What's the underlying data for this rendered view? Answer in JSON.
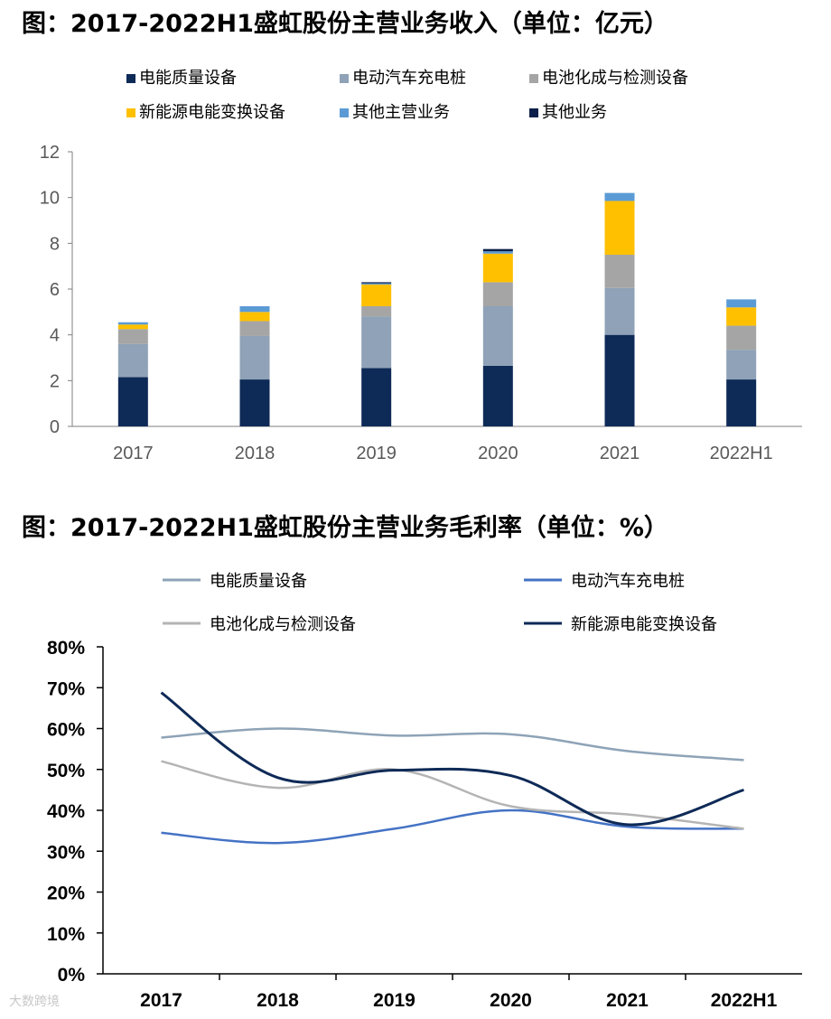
{
  "titles": {
    "chart1": "图：2017-2022H1盛虹股份主营业务收入（单位：亿元）",
    "chart2": "图：2017-2022H1盛虹股份主营业务毛利率（单位：%）"
  },
  "watermark": "大数跨境",
  "chart_data": [
    {
      "type": "bar",
      "stacked": true,
      "title": "图：2017-2022H1盛虹股份主营业务收入（单位：亿元）",
      "categories": [
        "2017",
        "2018",
        "2019",
        "2020",
        "2021",
        "2022H1"
      ],
      "ylim": [
        0,
        12
      ],
      "yticks": [
        0,
        2,
        4,
        6,
        8,
        10,
        12
      ],
      "ytick_labels": [
        "0",
        "2",
        "4",
        "6",
        "8",
        "10",
        "12"
      ],
      "legend_position": "top",
      "grid": false,
      "series": [
        {
          "name": "电能质量设备",
          "color": "#0e2a57",
          "values": [
            2.15,
            2.05,
            2.55,
            2.65,
            4.0,
            2.05
          ]
        },
        {
          "name": "电动汽车充电桩",
          "color": "#8fa2b7",
          "values": [
            1.45,
            1.9,
            2.25,
            2.6,
            2.05,
            1.3
          ]
        },
        {
          "name": "电池化成与检测设备",
          "color": "#a5a5a5",
          "values": [
            0.65,
            0.65,
            0.45,
            1.05,
            1.45,
            1.05
          ]
        },
        {
          "name": "新能源电能变换设备",
          "color": "#ffc000",
          "values": [
            0.2,
            0.4,
            0.95,
            1.25,
            2.35,
            0.8
          ]
        },
        {
          "name": "其他主营业务",
          "color": "#5b9bd5",
          "values": [
            0.1,
            0.25,
            0.05,
            0.1,
            0.35,
            0.35
          ]
        },
        {
          "name": "其他业务",
          "color": "#0b1f4a",
          "values": [
            0.0,
            0.0,
            0.05,
            0.1,
            0.0,
            0.0
          ]
        }
      ]
    },
    {
      "type": "line",
      "title": "图：2017-2022H1盛虹股份主营业务毛利率（单位：%）",
      "categories": [
        "2017",
        "2018",
        "2019",
        "2020",
        "2021",
        "2022H1"
      ],
      "ylim": [
        0,
        80
      ],
      "yticks": [
        0,
        10,
        20,
        30,
        40,
        50,
        60,
        70,
        80
      ],
      "ytick_labels": [
        "0%",
        "10%",
        "20%",
        "30%",
        "40%",
        "50%",
        "60%",
        "70%",
        "80%"
      ],
      "legend_position": "top",
      "grid": false,
      "series": [
        {
          "name": "电能质量设备",
          "color": "#8ea3b7",
          "values": [
            57.8,
            60.0,
            58.3,
            58.6,
            54.5,
            52.3
          ]
        },
        {
          "name": "电动汽车充电桩",
          "color": "#4472c4",
          "values": [
            34.5,
            32.0,
            35.5,
            40.0,
            36.0,
            35.5
          ]
        },
        {
          "name": "电池化成与检测设备",
          "color": "#b4b4b4",
          "values": [
            52.0,
            45.5,
            50.0,
            41.0,
            39.0,
            35.5
          ]
        },
        {
          "name": "新能源电能变换设备",
          "color": "#0e2a57",
          "values": [
            68.8,
            48.0,
            49.8,
            48.5,
            36.5,
            45.0
          ]
        }
      ]
    }
  ]
}
